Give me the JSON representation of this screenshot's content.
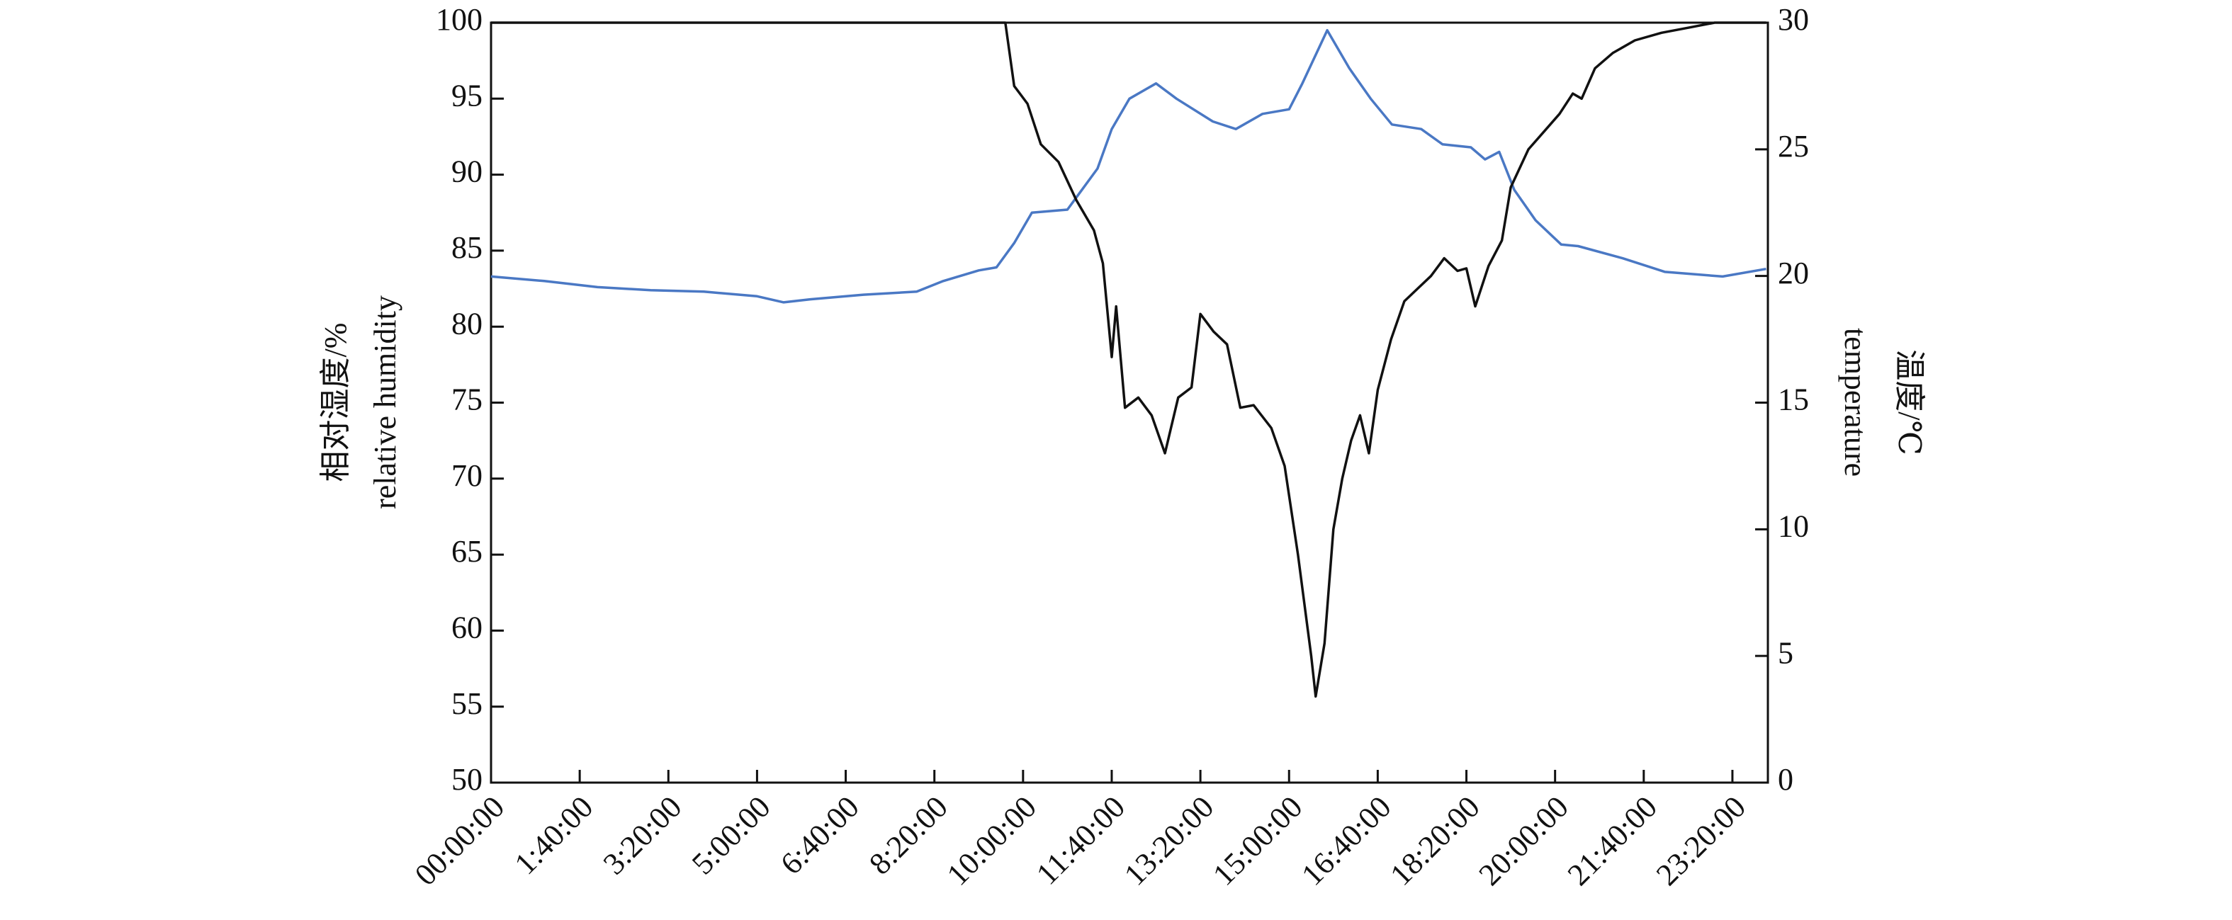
{
  "chart_data": {
    "type": "line",
    "y_label_lines": [
      "相对湿度/%",
      "relative humidity"
    ],
    "y2_label_lines": [
      "温度/℃",
      "temperature"
    ],
    "xlim": [
      "00:00:00",
      "24:00:00"
    ],
    "xticks": [
      "00:00:00",
      "1:40:00",
      "3:20:00",
      "5:00:00",
      "6:40:00",
      "8:20:00",
      "10:00:00",
      "11:40:00",
      "13:20:00",
      "15:00:00",
      "16:40:00",
      "18:20:00",
      "20:00:00",
      "21:40:00",
      "23:20:00"
    ],
    "ylim": [
      50,
      100
    ],
    "yticks": [
      50,
      55,
      60,
      65,
      70,
      75,
      80,
      85,
      90,
      95,
      100
    ],
    "y2lim": [
      0,
      30
    ],
    "y2ticks": [
      0,
      5,
      10,
      15,
      20,
      25,
      30
    ],
    "series": [
      {
        "color": "#4a78c4",
        "axis": "y",
        "x": [
          "0:00:00",
          "1:00:00",
          "2:00:00",
          "3:00:00",
          "4:00:00",
          "5:00:00",
          "5:30:00",
          "6:00:00",
          "7:00:00",
          "8:00:00",
          "8:30:00",
          "9:10:00",
          "9:30:00",
          "9:50:00",
          "10:10:00",
          "10:50:00",
          "11:24:00",
          "11:40:00",
          "12:00:00",
          "12:30:00",
          "12:53:00",
          "13:34:00",
          "14:00:00",
          "14:30:00",
          "15:00:00",
          "15:15:00",
          "15:43:00",
          "16:08:00",
          "16:32:00",
          "16:56:00",
          "17:29:00",
          "17:53:00",
          "18:25:00",
          "18:41:00",
          "18:57:00",
          "19:14:00",
          "19:38:00",
          "20:07:00",
          "20:26:00",
          "21:16:00",
          "22:04:00",
          "23:09:00",
          "23:58:00"
        ],
        "values": [
          83.3,
          83.0,
          82.6,
          82.4,
          82.3,
          82.0,
          81.6,
          81.8,
          82.1,
          82.3,
          83.0,
          83.7,
          83.9,
          85.5,
          87.5,
          87.7,
          90.4,
          93.0,
          95.0,
          96.0,
          95.0,
          93.5,
          93.0,
          94.0,
          94.3,
          96.0,
          99.5,
          97.0,
          95.0,
          93.3,
          93.0,
          92.0,
          91.8,
          91.0,
          91.5,
          89.0,
          87.0,
          85.4,
          85.3,
          84.5,
          83.6,
          83.3,
          83.8
        ]
      },
      {
        "color": "#111111",
        "axis": "y2",
        "x": [
          "0:00:00",
          "9:40:00",
          "9:50:00",
          "10:05:00",
          "10:20:00",
          "10:40:00",
          "11:00:00",
          "11:20:00",
          "11:30:00",
          "11:40:00",
          "11:45:00",
          "11:55:00",
          "12:10:00",
          "12:25:00",
          "12:40:00",
          "12:55:00",
          "13:10:00",
          "13:20:00",
          "13:35:00",
          "13:50:00",
          "14:05:00",
          "14:20:00",
          "14:40:00",
          "14:55:00",
          "15:10:00",
          "15:25:00",
          "15:30:00",
          "15:40:00",
          "15:50:00",
          "16:00:00",
          "16:10:00",
          "16:20:00",
          "16:30:00",
          "16:40:00",
          "16:55:00",
          "17:10:00",
          "17:25:00",
          "17:40:00",
          "17:55:00",
          "18:10:00",
          "18:20:00",
          "18:30:00",
          "18:45:00",
          "19:00:00",
          "19:10:00",
          "19:30:00",
          "19:50:00",
          "20:05:00",
          "20:20:00",
          "20:30:00",
          "20:45:00",
          "21:05:00",
          "21:30:00",
          "22:00:00",
          "22:30:00",
          "23:00:00",
          "23:58:00"
        ],
        "values": [
          30,
          30,
          27.5,
          26.8,
          25.2,
          24.5,
          23.0,
          21.8,
          20.5,
          16.8,
          18.8,
          14.8,
          15.2,
          14.5,
          13.0,
          15.2,
          15.6,
          18.5,
          17.8,
          17.3,
          14.8,
          14.9,
          14.0,
          12.5,
          9.0,
          5.0,
          3.4,
          5.5,
          10.0,
          12.0,
          13.5,
          14.5,
          13.0,
          15.5,
          17.5,
          19.0,
          19.5,
          20.0,
          20.7,
          20.2,
          20.3,
          18.8,
          20.4,
          21.4,
          23.5,
          25.0,
          25.8,
          26.4,
          27.2,
          27.0,
          28.2,
          28.8,
          29.3,
          29.6,
          29.8,
          30,
          30
        ]
      }
    ]
  }
}
